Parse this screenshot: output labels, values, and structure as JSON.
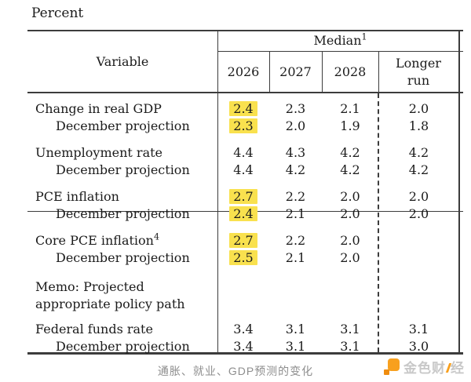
{
  "page": {
    "percent_label": "Percent"
  },
  "table": {
    "variable_header": "Variable",
    "median_label": "Median",
    "median_sup": "1",
    "year_headers": [
      "2026",
      "2027",
      "2028"
    ],
    "longer_run_header": "Longer run",
    "body_groups": [
      {
        "rows": [
          {
            "label": "Change in real GDP",
            "sup": "",
            "indent": false,
            "values": [
              {
                "value": "2.4",
                "highlighted": true
              },
              {
                "value": "2.3",
                "highlighted": false
              },
              {
                "value": "2.1",
                "highlighted": false
              },
              {
                "value": "2.0",
                "highlighted": false
              }
            ]
          },
          {
            "label": "December projection",
            "sup": "",
            "indent": true,
            "values": [
              {
                "value": "2.3",
                "highlighted": true
              },
              {
                "value": "2.0",
                "highlighted": false
              },
              {
                "value": "1.9",
                "highlighted": false
              },
              {
                "value": "1.8",
                "highlighted": false
              }
            ]
          }
        ]
      },
      {
        "rows": [
          {
            "label": "Unemployment rate",
            "sup": "",
            "indent": false,
            "values": [
              {
                "value": "4.4",
                "highlighted": false
              },
              {
                "value": "4.3",
                "highlighted": false
              },
              {
                "value": "4.2",
                "highlighted": false
              },
              {
                "value": "4.2",
                "highlighted": false
              }
            ]
          },
          {
            "label": "December projection",
            "sup": "",
            "indent": true,
            "values": [
              {
                "value": "4.4",
                "highlighted": false
              },
              {
                "value": "4.2",
                "highlighted": false
              },
              {
                "value": "4.2",
                "highlighted": false
              },
              {
                "value": "4.2",
                "highlighted": false
              }
            ]
          }
        ]
      },
      {
        "rows": [
          {
            "label": "PCE inflation",
            "sup": "",
            "indent": false,
            "values": [
              {
                "value": "2.7",
                "highlighted": true
              },
              {
                "value": "2.2",
                "highlighted": false
              },
              {
                "value": "2.0",
                "highlighted": false
              },
              {
                "value": "2.0",
                "highlighted": false
              }
            ]
          },
          {
            "label": "December projection",
            "sup": "",
            "indent": true,
            "values": [
              {
                "value": "2.4",
                "highlighted": true
              },
              {
                "value": "2.1",
                "highlighted": false
              },
              {
                "value": "2.0",
                "highlighted": false
              },
              {
                "value": "2.0",
                "highlighted": false
              }
            ]
          }
        ]
      },
      {
        "rows": [
          {
            "label": "Core PCE inflation",
            "sup": "4",
            "indent": false,
            "values": [
              {
                "value": "2.7",
                "highlighted": true
              },
              {
                "value": "2.2",
                "highlighted": false
              },
              {
                "value": "2.0",
                "highlighted": false
              },
              {
                "value": "",
                "highlighted": false
              }
            ]
          },
          {
            "label": "December projection",
            "sup": "",
            "indent": true,
            "values": [
              {
                "value": "2.5",
                "highlighted": true
              },
              {
                "value": "2.1",
                "highlighted": false
              },
              {
                "value": "2.0",
                "highlighted": false
              },
              {
                "value": "",
                "highlighted": false
              }
            ]
          }
        ]
      }
    ],
    "memo": {
      "line1": "Memo: Projected",
      "line2": "appropriate policy path"
    },
    "policy_group": {
      "rows": [
        {
          "label": "Federal funds rate",
          "sup": "",
          "indent": false,
          "values": [
            {
              "value": "3.4",
              "highlighted": false
            },
            {
              "value": "3.1",
              "highlighted": false
            },
            {
              "value": "3.1",
              "highlighted": false
            },
            {
              "value": "3.1",
              "highlighted": false
            }
          ]
        },
        {
          "label": "December projection",
          "sup": "",
          "indent": true,
          "values": [
            {
              "value": "3.4",
              "highlighted": false
            },
            {
              "value": "3.1",
              "highlighted": false
            },
            {
              "value": "3.1",
              "highlighted": false
            },
            {
              "value": "3.0",
              "highlighted": false
            }
          ]
        }
      ]
    }
  },
  "caption": "通胀、就业、GDP预测的变化",
  "logo": {
    "text_main": "金色财",
    "text_last": "经"
  },
  "colors": {
    "highlight": "#f9e14e",
    "rule": "#3c3c3c",
    "text": "#1b1b1b",
    "caption_gray": "#8e8e8e",
    "logo_orange": "#f8a01e",
    "logo_gray": "#c8c8c8"
  }
}
